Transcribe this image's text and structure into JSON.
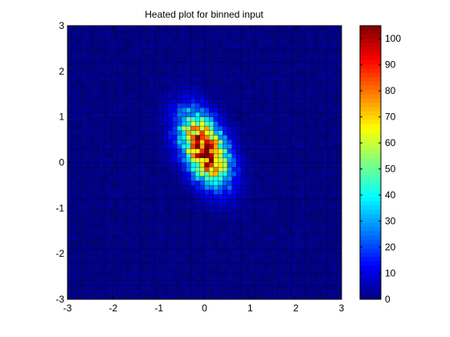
{
  "chart_data": {
    "type": "heatmap",
    "title": "Heated plot for binned input",
    "xlabel": "",
    "ylabel": "",
    "xlim": [
      -3,
      3
    ],
    "ylim": [
      -3,
      3
    ],
    "xticks": [
      -3,
      -2,
      -1,
      0,
      1,
      2,
      3
    ],
    "yticks": [
      -3,
      -2,
      -1,
      0,
      1,
      2,
      3
    ],
    "bins": 60,
    "distribution": {
      "kind": "bivariate-normal",
      "mean": [
        0.0,
        0.3
      ],
      "sigma_major": 0.55,
      "sigma_minor": 0.3,
      "major_axis_angle_deg": 115,
      "peak_count": 100,
      "background_count": 3
    },
    "colorbar": {
      "min": 0,
      "max": 105,
      "ticks": [
        0,
        10,
        20,
        30,
        40,
        50,
        60,
        70,
        80,
        90,
        100
      ],
      "colormap": "jet"
    },
    "grid": false
  }
}
